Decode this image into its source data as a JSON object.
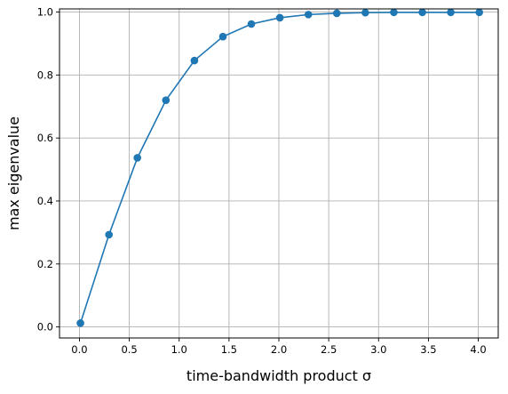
{
  "chart_data": {
    "type": "line",
    "title": "",
    "xlabel": "time-bandwidth product σ",
    "ylabel": "max eigenvalue",
    "xlim": [
      -0.2,
      4.2
    ],
    "ylim": [
      -0.035,
      1.01
    ],
    "grid": true,
    "xticks": [
      0.0,
      0.5,
      1.0,
      1.5,
      2.0,
      2.5,
      3.0,
      3.5,
      4.0
    ],
    "xtick_labels": [
      "0.0",
      "0.5",
      "1.0",
      "1.5",
      "2.0",
      "2.5",
      "3.0",
      "3.5",
      "4.0"
    ],
    "yticks": [
      0.0,
      0.2,
      0.4,
      0.6,
      0.8,
      1.0
    ],
    "ytick_labels": [
      "0.0",
      "0.2",
      "0.4",
      "0.6",
      "0.8",
      "1.0"
    ],
    "series": [
      {
        "color": "#1f77b4",
        "marker": "circle",
        "x": [
          0.01,
          0.296,
          0.581,
          0.867,
          1.153,
          1.439,
          1.724,
          2.01,
          2.296,
          2.581,
          2.867,
          3.153,
          3.439,
          3.724,
          4.01
        ],
        "y": [
          0.012,
          0.293,
          0.537,
          0.72,
          0.846,
          0.922,
          0.962,
          0.982,
          0.992,
          0.996,
          0.998,
          0.999,
          0.999,
          0.999,
          0.999
        ]
      }
    ]
  }
}
